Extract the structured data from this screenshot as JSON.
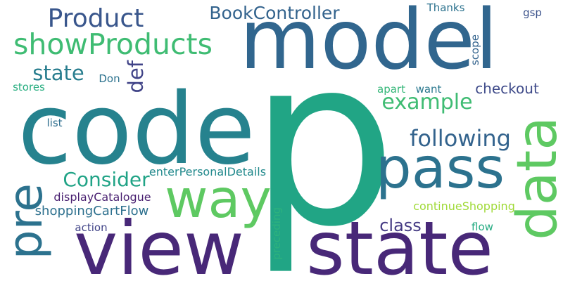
{
  "words": [
    {
      "text": "p",
      "color": "#21a585",
      "vertical": false
    },
    {
      "text": "code",
      "color": "#26828e",
      "vertical": false
    },
    {
      "text": "model",
      "color": "#31668e",
      "vertical": false
    },
    {
      "text": "view",
      "color": "#482878",
      "vertical": false
    },
    {
      "text": "state",
      "color": "#482878",
      "vertical": false
    },
    {
      "text": "pass",
      "color": "#2c728e",
      "vertical": false
    },
    {
      "text": "way",
      "color": "#5ec962",
      "vertical": false
    },
    {
      "text": "data",
      "color": "#5ec962",
      "vertical": true
    },
    {
      "text": "pre",
      "color": "#2c728e",
      "vertical": true
    },
    {
      "text": "showProducts",
      "color": "#3fbc73",
      "vertical": false
    },
    {
      "text": "Product",
      "color": "#39568c",
      "vertical": false
    },
    {
      "text": "BookController",
      "color": "#33638d",
      "vertical": false
    },
    {
      "text": "following",
      "color": "#33638d",
      "vertical": false
    },
    {
      "text": "example",
      "color": "#3fbc73",
      "vertical": false
    },
    {
      "text": "Consider",
      "color": "#20a386",
      "vertical": false
    },
    {
      "text": "state",
      "color": "#287d8e",
      "vertical": false
    },
    {
      "text": "def",
      "color": "#404387",
      "vertical": true
    },
    {
      "text": "class",
      "color": "#443a83",
      "vertical": false
    },
    {
      "text": "checkout",
      "color": "#3e4a89",
      "vertical": false
    },
    {
      "text": "shoppingCartFlow",
      "color": "#2d708e",
      "vertical": false
    },
    {
      "text": "displayCatalogue",
      "color": "#481f70",
      "vertical": false
    },
    {
      "text": "enterPersonalDetails",
      "color": "#238a8d",
      "vertical": false
    },
    {
      "text": "continueShopping",
      "color": "#a0da39",
      "vertical": false
    },
    {
      "text": "action",
      "color": "#404387",
      "vertical": false
    },
    {
      "text": "flow",
      "color": "#25ab82",
      "vertical": false
    },
    {
      "text": "preceding",
      "color": "#2db27d",
      "vertical": true
    },
    {
      "text": "apart",
      "color": "#35b779",
      "vertical": false
    },
    {
      "text": "want",
      "color": "#2a788e",
      "vertical": false
    },
    {
      "text": "Don",
      "color": "#2c728e",
      "vertical": false
    },
    {
      "text": "stores",
      "color": "#28ae80",
      "vertical": false
    },
    {
      "text": "list",
      "color": "#2e6e8e",
      "vertical": false
    },
    {
      "text": "scope",
      "color": "#33638d",
      "vertical": true
    },
    {
      "text": "Thanks",
      "color": "#2c728e",
      "vertical": false
    },
    {
      "text": "gsp",
      "color": "#3b528b",
      "vertical": false
    }
  ]
}
